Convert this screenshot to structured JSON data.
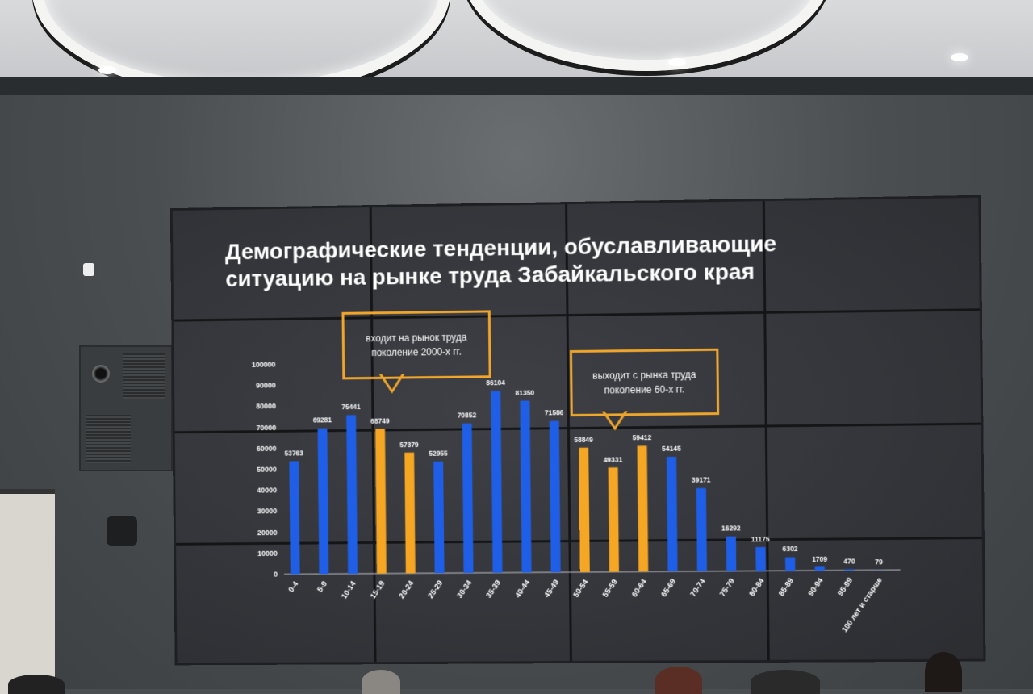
{
  "slide": {
    "title": "Демографические тенденции, обуславливающие\nситуацию на рынке труда Забайкальского края"
  },
  "callouts": {
    "entry": "входит на рынок труда\nпоколение 2000-х гг.",
    "exit": "выходит с рынка труда\nпоколение 60-х гг."
  },
  "colors": {
    "blue": "#1f5fe8",
    "orange": "#f5a623",
    "callout_border": "#f0a62a",
    "text": "#ffffff"
  },
  "chart_data": {
    "type": "bar",
    "title": "",
    "xlabel": "",
    "ylabel": "",
    "ylim": [
      0,
      100000
    ],
    "yticks": [
      0,
      10000,
      20000,
      30000,
      40000,
      50000,
      60000,
      70000,
      80000,
      90000,
      100000
    ],
    "grid": false,
    "categories": [
      "0-4",
      "5-9",
      "10-14",
      "15-19",
      "20-24",
      "25-29",
      "30-34",
      "35-39",
      "40-44",
      "45-49",
      "50-54",
      "55-59",
      "60-64",
      "65-69",
      "70-74",
      "75-79",
      "80-84",
      "85-89",
      "90-94",
      "95-99",
      "100 лет и старше"
    ],
    "values": [
      53763,
      69281,
      75441,
      68749,
      57379,
      52955,
      70852,
      86104,
      81350,
      71586,
      58849,
      49331,
      59412,
      54145,
      39171,
      16292,
      11175,
      6302,
      1709,
      470,
      79
    ],
    "bar_colors": [
      "blue",
      "blue",
      "blue",
      "orange",
      "orange",
      "blue",
      "blue",
      "blue",
      "blue",
      "blue",
      "orange",
      "orange",
      "orange",
      "blue",
      "blue",
      "blue",
      "blue",
      "blue",
      "blue",
      "blue",
      "blue"
    ],
    "data_labels": true
  }
}
